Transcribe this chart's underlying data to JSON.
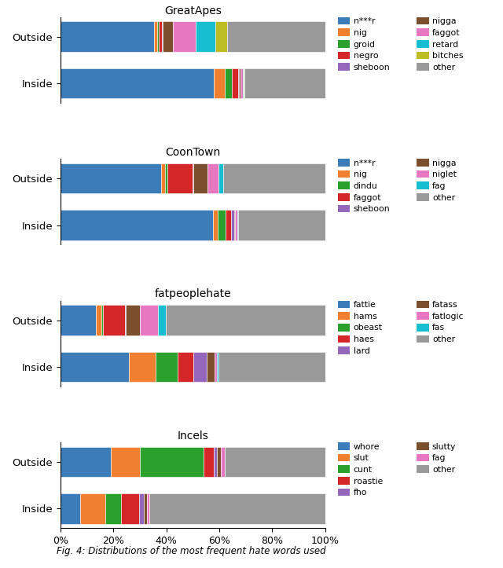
{
  "subplots": [
    {
      "title": "GreatApes",
      "bars": {
        "Outside": [
          {
            "label": "n***r",
            "value": 0.355,
            "color": "#3c7cb8"
          },
          {
            "label": "nig",
            "value": 0.012,
            "color": "#f08030"
          },
          {
            "label": "groid",
            "value": 0.006,
            "color": "#2ca02c"
          },
          {
            "label": "negro",
            "value": 0.01,
            "color": "#d62728"
          },
          {
            "label": "sheboon",
            "value": 0.004,
            "color": "#9467bd"
          },
          {
            "label": "nigga",
            "value": 0.038,
            "color": "#7b4f2e"
          },
          {
            "label": "faggot",
            "value": 0.085,
            "color": "#e877c2"
          },
          {
            "label": "retard",
            "value": 0.075,
            "color": "#17becf"
          },
          {
            "label": "bitches",
            "value": 0.045,
            "color": "#bcbd22"
          },
          {
            "label": "other",
            "value": 0.37,
            "color": "#999999"
          }
        ],
        "Inside": [
          {
            "label": "n***r",
            "value": 0.58,
            "color": "#3c7cb8"
          },
          {
            "label": "nig",
            "value": 0.04,
            "color": "#f08030"
          },
          {
            "label": "groid",
            "value": 0.028,
            "color": "#2ca02c"
          },
          {
            "label": "negro",
            "value": 0.022,
            "color": "#d62728"
          },
          {
            "label": "sheboon",
            "value": 0.005,
            "color": "#9467bd"
          },
          {
            "label": "nigga",
            "value": 0.005,
            "color": "#7b4f2e"
          },
          {
            "label": "faggot",
            "value": 0.008,
            "color": "#e877c2"
          },
          {
            "label": "retard",
            "value": 0.004,
            "color": "#17becf"
          },
          {
            "label": "bitches",
            "value": 0.003,
            "color": "#bcbd22"
          },
          {
            "label": "other",
            "value": 0.305,
            "color": "#999999"
          }
        ]
      },
      "legend": [
        {
          "label": "n***r",
          "color": "#3c7cb8"
        },
        {
          "label": "nig",
          "color": "#f08030"
        },
        {
          "label": "groid",
          "color": "#2ca02c"
        },
        {
          "label": "negro",
          "color": "#d62728"
        },
        {
          "label": "sheboon",
          "color": "#9467bd"
        },
        {
          "label": "nigga",
          "color": "#7b4f2e"
        },
        {
          "label": "faggot",
          "color": "#e877c2"
        },
        {
          "label": "retard",
          "color": "#17becf"
        },
        {
          "label": "bitches",
          "color": "#bcbd22"
        },
        {
          "label": "other",
          "color": "#999999"
        }
      ]
    },
    {
      "title": "CoonTown",
      "bars": {
        "Outside": [
          {
            "label": "n***r",
            "value": 0.38,
            "color": "#3c7cb8"
          },
          {
            "label": "nig",
            "value": 0.015,
            "color": "#f08030"
          },
          {
            "label": "dindu",
            "value": 0.008,
            "color": "#2ca02c"
          },
          {
            "label": "faggot",
            "value": 0.095,
            "color": "#d62728"
          },
          {
            "label": "sheboon",
            "value": 0.004,
            "color": "#9467bd"
          },
          {
            "label": "nigga",
            "value": 0.055,
            "color": "#7b4f2e"
          },
          {
            "label": "niglet",
            "value": 0.04,
            "color": "#e877c2"
          },
          {
            "label": "fag",
            "value": 0.018,
            "color": "#17becf"
          },
          {
            "label": "other",
            "value": 0.385,
            "color": "#999999"
          }
        ],
        "Inside": [
          {
            "label": "n***r",
            "value": 0.575,
            "color": "#3c7cb8"
          },
          {
            "label": "nig",
            "value": 0.02,
            "color": "#f08030"
          },
          {
            "label": "dindu",
            "value": 0.03,
            "color": "#2ca02c"
          },
          {
            "label": "faggot",
            "value": 0.02,
            "color": "#d62728"
          },
          {
            "label": "sheboon",
            "value": 0.01,
            "color": "#9467bd"
          },
          {
            "label": "nigga",
            "value": 0.005,
            "color": "#7b4f2e"
          },
          {
            "label": "niglet",
            "value": 0.008,
            "color": "#e877c2"
          },
          {
            "label": "fag",
            "value": 0.004,
            "color": "#17becf"
          },
          {
            "label": "other",
            "value": 0.328,
            "color": "#999999"
          }
        ]
      },
      "legend": [
        {
          "label": "n***r",
          "color": "#3c7cb8"
        },
        {
          "label": "nig",
          "color": "#f08030"
        },
        {
          "label": "dindu",
          "color": "#2ca02c"
        },
        {
          "label": "faggot",
          "color": "#d62728"
        },
        {
          "label": "sheboon",
          "color": "#9467bd"
        },
        {
          "label": "nigga",
          "color": "#7b4f2e"
        },
        {
          "label": "niglet",
          "color": "#e877c2"
        },
        {
          "label": "fag",
          "color": "#17becf"
        },
        {
          "label": "other",
          "color": "#999999"
        }
      ]
    },
    {
      "title": "fatpeoplehate",
      "bars": {
        "Outside": [
          {
            "label": "fattie",
            "value": 0.135,
            "color": "#3c7cb8"
          },
          {
            "label": "hams",
            "value": 0.02,
            "color": "#f08030"
          },
          {
            "label": "obeast",
            "value": 0.006,
            "color": "#2ca02c"
          },
          {
            "label": "haes",
            "value": 0.082,
            "color": "#d62728"
          },
          {
            "label": "lard",
            "value": 0.005,
            "color": "#9467bd"
          },
          {
            "label": "fatass",
            "value": 0.052,
            "color": "#7b4f2e"
          },
          {
            "label": "fatlogic",
            "value": 0.068,
            "color": "#e877c2"
          },
          {
            "label": "fas",
            "value": 0.03,
            "color": "#17becf"
          },
          {
            "label": "other",
            "value": 0.602,
            "color": "#999999"
          }
        ],
        "Inside": [
          {
            "label": "fattie",
            "value": 0.26,
            "color": "#3c7cb8"
          },
          {
            "label": "hams",
            "value": 0.1,
            "color": "#f08030"
          },
          {
            "label": "obeast",
            "value": 0.082,
            "color": "#2ca02c"
          },
          {
            "label": "haes",
            "value": 0.06,
            "color": "#d62728"
          },
          {
            "label": "lard",
            "value": 0.05,
            "color": "#9467bd"
          },
          {
            "label": "fatass",
            "value": 0.03,
            "color": "#7b4f2e"
          },
          {
            "label": "fatlogic",
            "value": 0.01,
            "color": "#e877c2"
          },
          {
            "label": "fas",
            "value": 0.005,
            "color": "#17becf"
          },
          {
            "label": "other",
            "value": 0.403,
            "color": "#999999"
          }
        ]
      },
      "legend": [
        {
          "label": "fattie",
          "color": "#3c7cb8"
        },
        {
          "label": "hams",
          "color": "#f08030"
        },
        {
          "label": "obeast",
          "color": "#2ca02c"
        },
        {
          "label": "haes",
          "color": "#d62728"
        },
        {
          "label": "lard",
          "color": "#9467bd"
        },
        {
          "label": "fatass",
          "color": "#7b4f2e"
        },
        {
          "label": "fatlogic",
          "color": "#e877c2"
        },
        {
          "label": "fas",
          "color": "#17becf"
        },
        {
          "label": "other",
          "color": "#999999"
        }
      ]
    },
    {
      "title": "Incels",
      "bars": {
        "Outside": [
          {
            "label": "whore",
            "value": 0.19,
            "color": "#3c7cb8"
          },
          {
            "label": "slut",
            "value": 0.11,
            "color": "#f08030"
          },
          {
            "label": "cunt",
            "value": 0.24,
            "color": "#2ca02c"
          },
          {
            "label": "roastie",
            "value": 0.04,
            "color": "#d62728"
          },
          {
            "label": "fho",
            "value": 0.01,
            "color": "#9467bd"
          },
          {
            "label": "slutty",
            "value": 0.015,
            "color": "#7b4f2e"
          },
          {
            "label": "fag",
            "value": 0.015,
            "color": "#e877c2"
          },
          {
            "label": "other",
            "value": 0.38,
            "color": "#999999"
          }
        ],
        "Inside": [
          {
            "label": "whore",
            "value": 0.075,
            "color": "#3c7cb8"
          },
          {
            "label": "slut",
            "value": 0.095,
            "color": "#f08030"
          },
          {
            "label": "cunt",
            "value": 0.06,
            "color": "#2ca02c"
          },
          {
            "label": "roastie",
            "value": 0.068,
            "color": "#d62728"
          },
          {
            "label": "fho",
            "value": 0.018,
            "color": "#9467bd"
          },
          {
            "label": "slutty",
            "value": 0.01,
            "color": "#7b4f2e"
          },
          {
            "label": "fag",
            "value": 0.01,
            "color": "#e877c2"
          },
          {
            "label": "other",
            "value": 0.664,
            "color": "#999999"
          }
        ]
      },
      "legend": [
        {
          "label": "whore",
          "color": "#3c7cb8"
        },
        {
          "label": "slut",
          "color": "#f08030"
        },
        {
          "label": "cunt",
          "color": "#2ca02c"
        },
        {
          "label": "roastie",
          "color": "#d62728"
        },
        {
          "label": "fho",
          "color": "#9467bd"
        },
        {
          "label": "slutty",
          "color": "#7b4f2e"
        },
        {
          "label": "fag",
          "color": "#e877c2"
        },
        {
          "label": "other",
          "color": "#999999"
        }
      ]
    }
  ],
  "caption": "Fig. 4: Distributions of the most frequent hate words used",
  "xtick_labels": [
    "0%",
    "20%",
    "40%",
    "60%",
    "80%",
    "100%"
  ],
  "xtick_values": [
    0.0,
    0.2,
    0.4,
    0.6,
    0.8,
    1.0
  ],
  "bar_height": 0.65,
  "figure_width": 6.4,
  "figure_height": 7.23,
  "dpi": 100
}
